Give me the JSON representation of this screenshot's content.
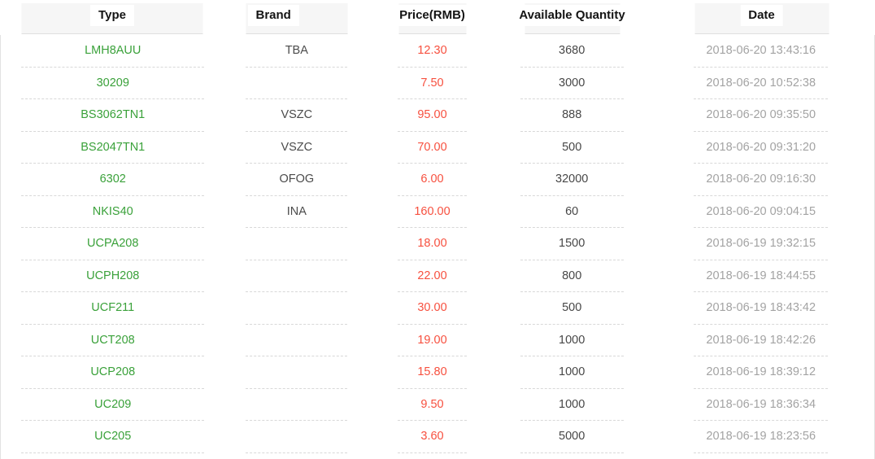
{
  "table": {
    "columns": [
      {
        "key": "type",
        "label": "Type"
      },
      {
        "key": "brand",
        "label": "Brand"
      },
      {
        "key": "price",
        "label": "Price(RMB)"
      },
      {
        "key": "qty",
        "label": "Available Quantity"
      },
      {
        "key": "date",
        "label": "Date"
      }
    ],
    "rows": [
      {
        "type": "LMH8AUU",
        "brand": "TBA",
        "price": "12.30",
        "qty": "3680",
        "date": "2018-06-20 13:43:16"
      },
      {
        "type": "30209",
        "brand": "",
        "price": "7.50",
        "qty": "3000",
        "date": "2018-06-20 10:52:38"
      },
      {
        "type": "BS3062TN1",
        "brand": "VSZC",
        "price": "95.00",
        "qty": "888",
        "date": "2018-06-20 09:35:50"
      },
      {
        "type": "BS2047TN1",
        "brand": "VSZC",
        "price": "70.00",
        "qty": "500",
        "date": "2018-06-20 09:31:20"
      },
      {
        "type": "6302",
        "brand": "OFOG",
        "price": "6.00",
        "qty": "32000",
        "date": "2018-06-20 09:16:30"
      },
      {
        "type": "NKIS40",
        "brand": "INA",
        "price": "160.00",
        "qty": "60",
        "date": "2018-06-20 09:04:15"
      },
      {
        "type": "UCPA208",
        "brand": "",
        "price": "18.00",
        "qty": "1500",
        "date": "2018-06-19 19:32:15"
      },
      {
        "type": "UCPH208",
        "brand": "",
        "price": "22.00",
        "qty": "800",
        "date": "2018-06-19 18:44:55"
      },
      {
        "type": "UCF211",
        "brand": "",
        "price": "30.00",
        "qty": "500",
        "date": "2018-06-19 18:43:42"
      },
      {
        "type": "UCT208",
        "brand": "",
        "price": "19.00",
        "qty": "1000",
        "date": "2018-06-19 18:42:26"
      },
      {
        "type": "UCP208",
        "brand": "",
        "price": "15.80",
        "qty": "1000",
        "date": "2018-06-19 18:39:12"
      },
      {
        "type": "UC209",
        "brand": "",
        "price": "9.50",
        "qty": "1000",
        "date": "2018-06-19 18:36:34"
      },
      {
        "type": "UC205",
        "brand": "",
        "price": "3.60",
        "qty": "5000",
        "date": "2018-06-19 18:23:56"
      }
    ]
  },
  "colors": {
    "type_link": "#3aa13a",
    "price": "#f7503f",
    "date": "#a3a3a3",
    "body_text": "#4b4b4b",
    "header_band": "#f6f6f6",
    "dashed_divider": "#d8d8d8"
  }
}
